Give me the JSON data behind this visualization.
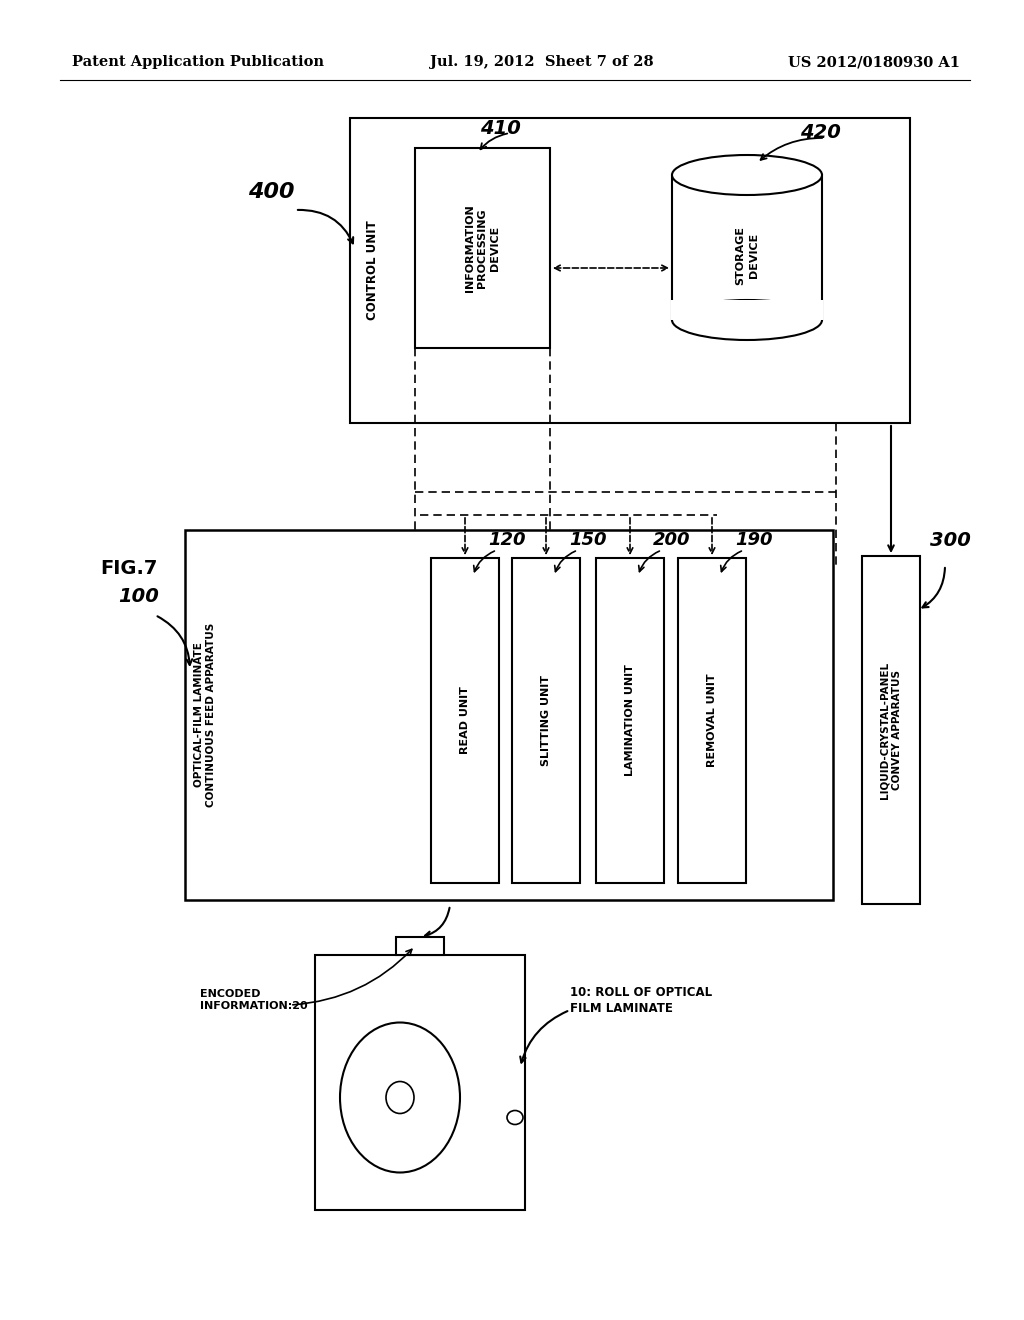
{
  "bg_color": "#ffffff",
  "header_left": "Patent Application Publication",
  "header_mid": "Jul. 19, 2012  Sheet 7 of 28",
  "header_right": "US 2012/0180930 A1",
  "fig_label": "FIG.7",
  "fig_number": "100",
  "control_unit_label": "CONTROL UNIT",
  "control_unit_number": "400",
  "info_proc_label": "INFORMATION\nPROCESSING\nDEVICE",
  "info_proc_number": "410",
  "storage_label": "STORAGE\nDEVICE",
  "storage_number": "420",
  "optical_film_label": "OPTICAL-FILM LAMINATE\nCONTINUOUS FEED APPARATUS",
  "units": [
    {
      "label": "READ UNIT",
      "number": "120"
    },
    {
      "label": "SLITTING UNIT",
      "number": "150"
    },
    {
      "label": "LAMINATION UNIT",
      "number": "200"
    },
    {
      "label": "REMOVAL UNIT",
      "number": "190"
    }
  ],
  "lcd_label": "LIQUID-CRYSTAL-PANEL\nCONVEY APPARATUS",
  "lcd_number": "300",
  "roll_label": "10: ROLL OF OPTICAL\nFILM LAMINATE",
  "encoded_label": "ENCODED\nINFORMATION:20"
}
